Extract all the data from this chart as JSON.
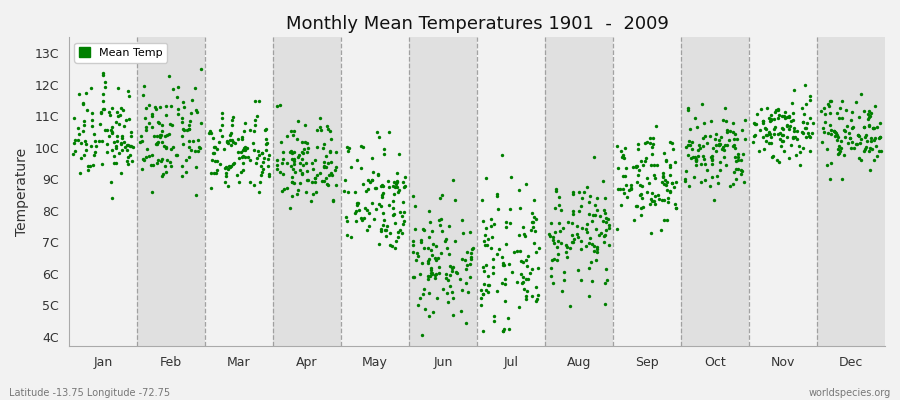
{
  "title": "Monthly Mean Temperatures 1901  -  2009",
  "ylabel": "Temperature",
  "ytick_labels": [
    "4C",
    "5C",
    "6C",
    "7C",
    "8C",
    "9C",
    "10C",
    "11C",
    "12C",
    "13C"
  ],
  "ytick_values": [
    4,
    5,
    6,
    7,
    8,
    9,
    10,
    11,
    12,
    13
  ],
  "ylim": [
    3.7,
    13.5
  ],
  "months": [
    "Jan",
    "Feb",
    "Mar",
    "Apr",
    "May",
    "Jun",
    "Jul",
    "Aug",
    "Sep",
    "Oct",
    "Nov",
    "Dec"
  ],
  "dot_color": "#008000",
  "bg_color": "#f2f2f2",
  "plot_bg_color_light": "#f2f2f2",
  "plot_bg_color_dark": "#e0e0e0",
  "legend_label": "Mean Temp",
  "footer_left": "Latitude -13.75 Longitude -72.75",
  "footer_right": "worldspecies.org",
  "seed": 12345,
  "n_years": 109,
  "monthly_means": [
    10.4,
    10.3,
    9.8,
    9.5,
    8.5,
    6.5,
    6.4,
    7.2,
    9.0,
    9.8,
    10.6,
    10.5
  ],
  "monthly_stds": [
    0.75,
    0.75,
    0.65,
    0.7,
    0.95,
    1.0,
    1.0,
    0.85,
    0.7,
    0.7,
    0.55,
    0.55
  ],
  "monthly_mins": [
    8.4,
    8.5,
    8.2,
    7.4,
    5.5,
    4.0,
    4.2,
    4.4,
    7.0,
    8.2,
    9.1,
    9.0
  ],
  "monthly_maxs": [
    12.5,
    12.5,
    12.2,
    11.6,
    10.5,
    9.8,
    10.5,
    11.0,
    11.2,
    11.8,
    12.9,
    12.2
  ]
}
